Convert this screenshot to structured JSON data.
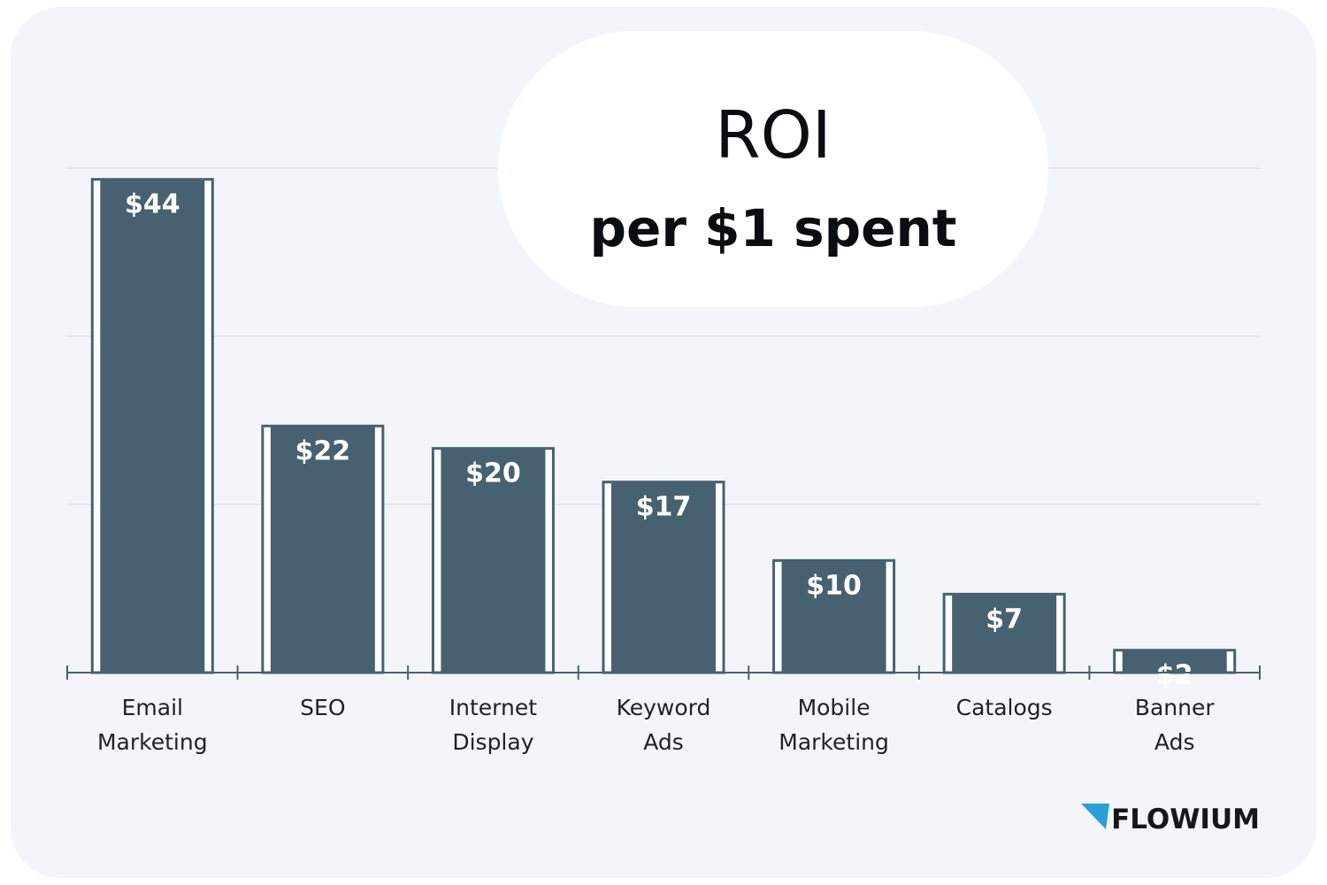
{
  "colors": {
    "card_background": "#f3f5fa",
    "bar_fill": "#486170",
    "bar_outline": "#486170",
    "gridline": "#cfe0ee",
    "axis": "#486170",
    "logo_accent": "#2a9fd8",
    "logo_text": "#15171b"
  },
  "chart_data": {
    "type": "bar",
    "title": "ROI",
    "subtitle": "per $1 spent",
    "categories": [
      [
        "Email",
        "Marketing"
      ],
      [
        "SEO"
      ],
      [
        "Internet",
        "Display"
      ],
      [
        "Keyword",
        "Ads"
      ],
      [
        "Mobile",
        "Marketing"
      ],
      [
        "Catalogs"
      ],
      [
        "Banner",
        "Ads"
      ]
    ],
    "values": [
      44,
      22,
      20,
      17,
      10,
      7,
      2
    ],
    "data_labels": [
      "$44",
      "$22",
      "$20",
      "$17",
      "$10",
      "$7",
      "$2"
    ],
    "ylim": [
      0,
      45
    ],
    "grid": true,
    "legend": "none"
  },
  "logo": {
    "text": "FLOWIUM",
    "icon": "flowium-triangle-icon"
  }
}
